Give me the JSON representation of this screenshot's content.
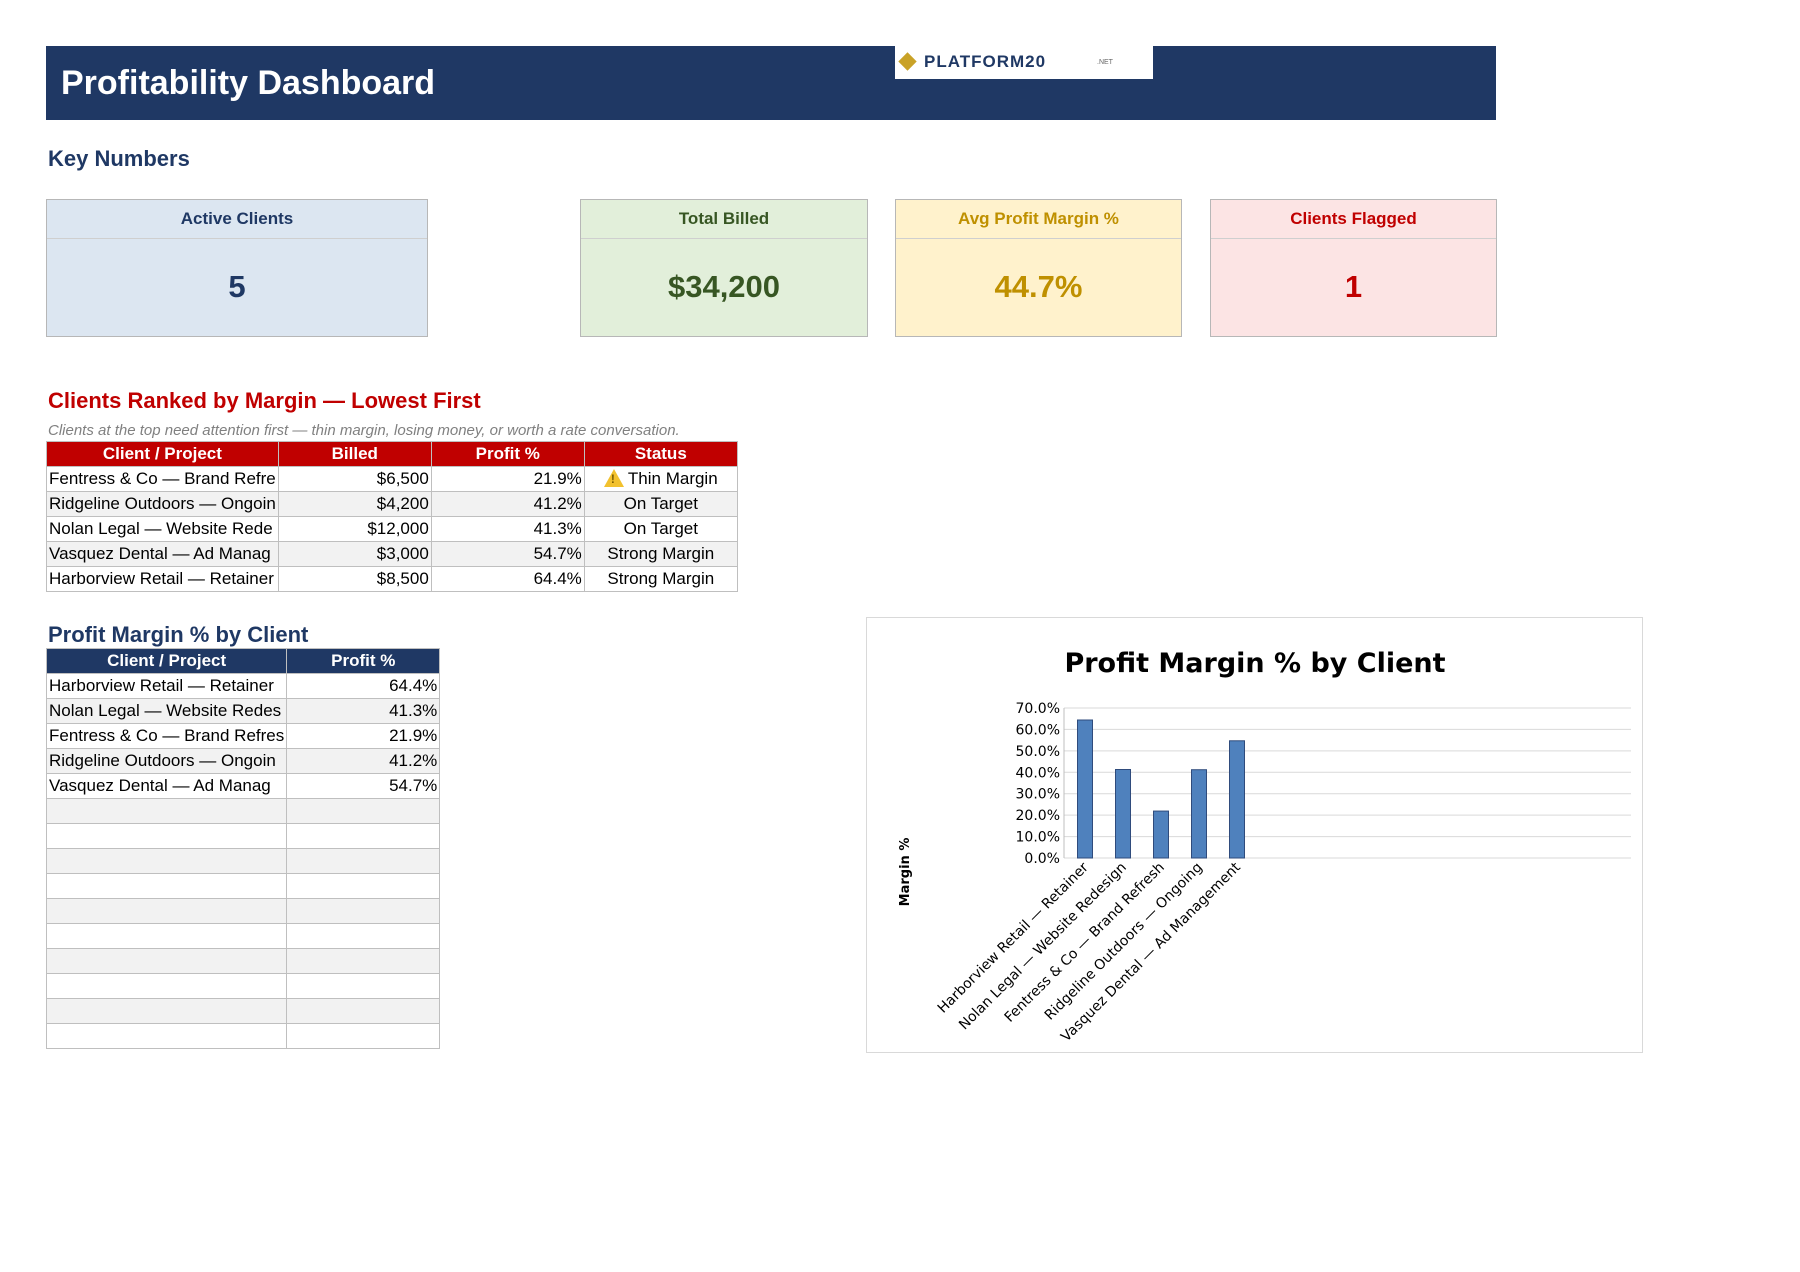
{
  "header": {
    "title": "Profitability Dashboard",
    "logo_text": "PLATFORM20",
    "logo_suffix": ".NET"
  },
  "key_numbers": {
    "title": "Key Numbers",
    "cards": [
      {
        "label": "Active Clients",
        "value": "5"
      },
      {
        "label": "Total Billed",
        "value": "$34,200"
      },
      {
        "label": "Avg Profit Margin %",
        "value": "44.7%"
      },
      {
        "label": "Clients Flagged",
        "value": "1"
      }
    ]
  },
  "ranked": {
    "title": "Clients Ranked by Margin — Lowest First",
    "subtitle": "Clients at the top need attention first — thin margin, losing money, or worth a rate conversation.",
    "headers": [
      "Client / Project",
      "Billed",
      "Profit %",
      "Status"
    ],
    "rows": [
      {
        "client": "Fentress & Co — Brand Refre",
        "billed": "$6,500",
        "profit": "21.9%",
        "status": "Thin Margin",
        "warning": true
      },
      {
        "client": "Ridgeline Outdoors — Ongoin",
        "billed": "$4,200",
        "profit": "41.2%",
        "status": "On Target",
        "warning": false
      },
      {
        "client": "Nolan Legal — Website Rede",
        "billed": "$12,000",
        "profit": "41.3%",
        "status": "On Target",
        "warning": false
      },
      {
        "client": "Vasquez Dental — Ad Manag",
        "billed": "$3,000",
        "profit": "54.7%",
        "status": "Strong Margin",
        "warning": false
      },
      {
        "client": "Harborview Retail — Retainer",
        "billed": "$8,500",
        "profit": "64.4%",
        "status": "Strong Margin",
        "warning": false
      }
    ]
  },
  "margin_table": {
    "title": "Profit Margin % by Client",
    "headers": [
      "Client / Project",
      "Profit %"
    ],
    "rows": [
      {
        "client": "Harborview Retail — Retainer",
        "profit": "64.4%"
      },
      {
        "client": "Nolan Legal — Website Redes",
        "profit": "41.3%"
      },
      {
        "client": "Fentress & Co — Brand Refres",
        "profit": "21.9%"
      },
      {
        "client": "Ridgeline Outdoors — Ongoin",
        "profit": "41.2%"
      },
      {
        "client": "Vasquez Dental — Ad Manag",
        "profit": "54.7%"
      }
    ],
    "empty_rows": 10
  },
  "colors": {
    "navy": "#1f3864",
    "red": "#c00000",
    "bar": "#4f81bd"
  },
  "chart_data": {
    "type": "bar",
    "title": "Profit Margin % by Client",
    "xlabel": "",
    "ylabel": "Margin %",
    "categories": [
      "Harborview Retail — Retainer",
      "Nolan Legal — Website Redesign",
      "Fentress & Co — Brand Refresh",
      "Ridgeline Outdoors — Ongoing",
      "Vasquez Dental — Ad Management"
    ],
    "values": [
      64.4,
      41.3,
      21.9,
      41.2,
      54.7
    ],
    "ylim": [
      0,
      70
    ],
    "yticks": [
      "0.0%",
      "10.0%",
      "20.0%",
      "30.0%",
      "40.0%",
      "50.0%",
      "60.0%",
      "70.0%"
    ],
    "grid": true,
    "legend": "none"
  }
}
